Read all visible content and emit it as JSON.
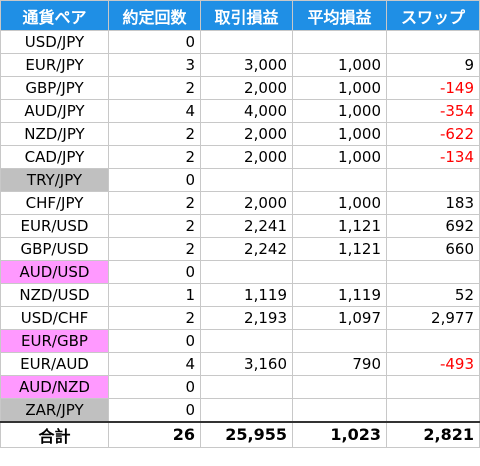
{
  "colors": {
    "header_bg": "#1f8fe5",
    "header_text": "#ffffff",
    "negative_text": "#ff0000",
    "zero_trade_gray": "#c0c0c0",
    "zero_trade_pink": "#ff99ff"
  },
  "table": {
    "headers": [
      "通貨ペア",
      "約定回数",
      "取引損益",
      "平均損益",
      "スワップ"
    ],
    "rows": [
      {
        "pair": "USD/JPY",
        "trades": "0",
        "profit": "",
        "average": "",
        "swap": "",
        "negative": false,
        "highlight": ""
      },
      {
        "pair": "EUR/JPY",
        "trades": "3",
        "profit": "3,000",
        "average": "1,000",
        "swap": "9",
        "negative": false,
        "highlight": ""
      },
      {
        "pair": "GBP/JPY",
        "trades": "2",
        "profit": "2,000",
        "average": "1,000",
        "swap": "-149",
        "negative": true,
        "highlight": ""
      },
      {
        "pair": "AUD/JPY",
        "trades": "4",
        "profit": "4,000",
        "average": "1,000",
        "swap": "-354",
        "negative": true,
        "highlight": ""
      },
      {
        "pair": "NZD/JPY",
        "trades": "2",
        "profit": "2,000",
        "average": "1,000",
        "swap": "-622",
        "negative": true,
        "highlight": ""
      },
      {
        "pair": "CAD/JPY",
        "trades": "2",
        "profit": "2,000",
        "average": "1,000",
        "swap": "-134",
        "negative": true,
        "highlight": ""
      },
      {
        "pair": "TRY/JPY",
        "trades": "0",
        "profit": "",
        "average": "",
        "swap": "",
        "negative": false,
        "highlight": "gray"
      },
      {
        "pair": "CHF/JPY",
        "trades": "2",
        "profit": "2,000",
        "average": "1,000",
        "swap": "183",
        "negative": false,
        "highlight": ""
      },
      {
        "pair": "EUR/USD",
        "trades": "2",
        "profit": "2,241",
        "average": "1,121",
        "swap": "692",
        "negative": false,
        "highlight": ""
      },
      {
        "pair": "GBP/USD",
        "trades": "2",
        "profit": "2,242",
        "average": "1,121",
        "swap": "660",
        "negative": false,
        "highlight": ""
      },
      {
        "pair": "AUD/USD",
        "trades": "0",
        "profit": "",
        "average": "",
        "swap": "",
        "negative": false,
        "highlight": "pink"
      },
      {
        "pair": "NZD/USD",
        "trades": "1",
        "profit": "1,119",
        "average": "1,119",
        "swap": "52",
        "negative": false,
        "highlight": ""
      },
      {
        "pair": "USD/CHF",
        "trades": "2",
        "profit": "2,193",
        "average": "1,097",
        "swap": "2,977",
        "negative": false,
        "highlight": ""
      },
      {
        "pair": "EUR/GBP",
        "trades": "0",
        "profit": "",
        "average": "",
        "swap": "",
        "negative": false,
        "highlight": "pink"
      },
      {
        "pair": "EUR/AUD",
        "trades": "4",
        "profit": "3,160",
        "average": "790",
        "swap": "-493",
        "negative": true,
        "highlight": ""
      },
      {
        "pair": "AUD/NZD",
        "trades": "0",
        "profit": "",
        "average": "",
        "swap": "",
        "negative": false,
        "highlight": "pink"
      },
      {
        "pair": "ZAR/JPY",
        "trades": "0",
        "profit": "",
        "average": "",
        "swap": "",
        "negative": false,
        "highlight": "gray"
      }
    ],
    "total": {
      "label": "合計",
      "trades": "26",
      "profit": "25,955",
      "average": "1,023",
      "swap": "2,821"
    }
  }
}
